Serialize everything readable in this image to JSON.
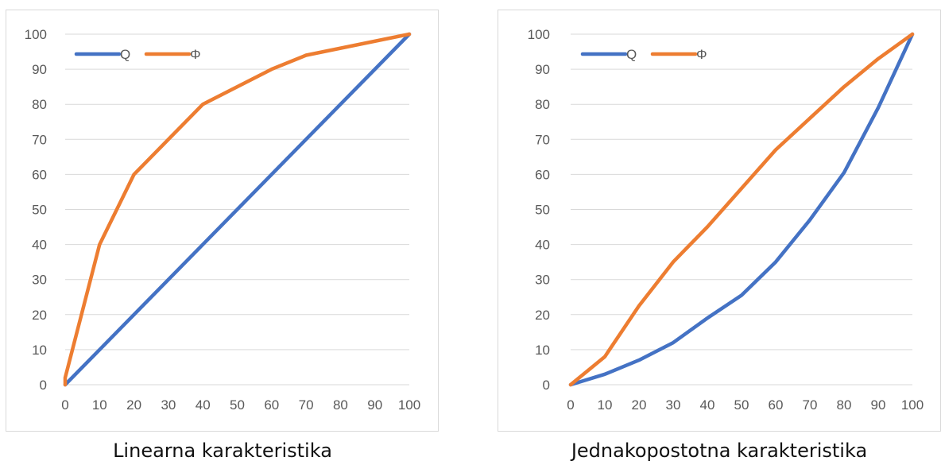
{
  "captions": [
    "Linearna karakteristika",
    "Jednakopostotna karakteristika"
  ],
  "colors": {
    "q": "#4472c4",
    "phi": "#ed7d31",
    "grid": "#d9d9d9",
    "text": "#595959"
  },
  "chart_data": [
    {
      "type": "line",
      "title": "",
      "caption": "Linearna karakteristika",
      "xlabel": "",
      "ylabel": "",
      "xlim": [
        0,
        100
      ],
      "ylim": [
        0,
        100
      ],
      "x_ticks": [
        "0",
        "10",
        "20",
        "30",
        "40",
        "50",
        "60",
        "70",
        "80",
        "90",
        "100"
      ],
      "y_ticks": [
        "0",
        "10",
        "20",
        "30",
        "40",
        "50",
        "60",
        "70",
        "80",
        "90",
        "100"
      ],
      "grid": "horizontal",
      "legend_position": "top-left",
      "series": [
        {
          "name": "Q",
          "color": "#4472c4",
          "x": [
            0,
            100
          ],
          "y": [
            0,
            100
          ]
        },
        {
          "name": "Φ",
          "color": "#ed7d31",
          "x": [
            0,
            0,
            10,
            20,
            40,
            60,
            70,
            100
          ],
          "y": [
            0,
            2,
            40,
            60,
            80,
            90,
            94,
            100
          ]
        }
      ]
    },
    {
      "type": "line",
      "title": "",
      "caption": "Jednakopostotna karakteristika",
      "xlabel": "",
      "ylabel": "",
      "xlim": [
        0,
        100
      ],
      "ylim": [
        0,
        100
      ],
      "x_ticks": [
        "0",
        "10",
        "20",
        "30",
        "40",
        "50",
        "60",
        "70",
        "80",
        "90",
        "100"
      ],
      "y_ticks": [
        "0",
        "10",
        "20",
        "30",
        "40",
        "50",
        "60",
        "70",
        "80",
        "90",
        "100"
      ],
      "grid": "horizontal",
      "legend_position": "top-left",
      "series": [
        {
          "name": "Q",
          "color": "#4472c4",
          "x": [
            0,
            10,
            20,
            30,
            40,
            50,
            60,
            70,
            80,
            90,
            100
          ],
          "y": [
            0,
            3,
            7,
            12,
            19,
            25.5,
            35,
            47,
            60.5,
            79,
            100
          ]
        },
        {
          "name": "Φ",
          "color": "#ed7d31",
          "x": [
            0,
            10,
            20,
            30,
            40,
            50,
            60,
            70,
            80,
            90,
            100
          ],
          "y": [
            0,
            8,
            22.5,
            35,
            45,
            56,
            67,
            76,
            85,
            93,
            100
          ]
        }
      ]
    }
  ]
}
